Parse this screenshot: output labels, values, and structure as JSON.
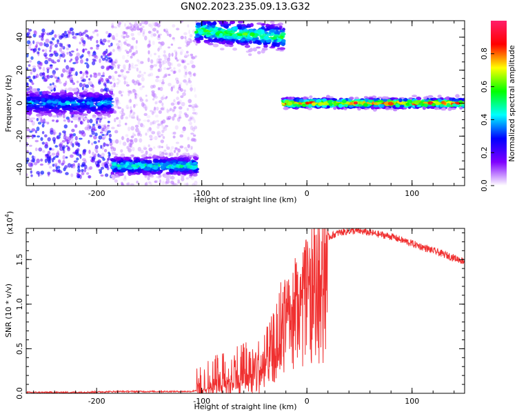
{
  "title": "GN02.2023.235.09.13.G32",
  "chart_data": [
    {
      "type": "heatmap",
      "xlabel": "Height of straight line (km)",
      "ylabel": "Frequency (Hz)",
      "xlim": [
        -267,
        150
      ],
      "ylim": [
        -50,
        50
      ],
      "xticks": [
        -200,
        -100,
        0,
        100
      ],
      "yticks": [
        -40,
        -20,
        0,
        20,
        40
      ],
      "colorbar": {
        "label": "Normalized spectral amplitude",
        "range": [
          0,
          1
        ],
        "ticks": [
          0.0,
          0.2,
          0.4,
          0.6,
          0.8
        ],
        "colors": [
          "#ffffff",
          "#7f00ff",
          "#0000ff",
          "#00ffff",
          "#00ff00",
          "#ffff00",
          "#ff0000",
          "#ff1f6a"
        ]
      },
      "regions": [
        {
          "x": [
            -267,
            -185
          ],
          "freq_center": 0,
          "freq_spread": 45,
          "intensity": 0.35,
          "kind": "scatter"
        },
        {
          "x": [
            -267,
            -185
          ],
          "freq_center": 0,
          "freq_spread": 4,
          "intensity": 0.45,
          "kind": "band"
        },
        {
          "x": [
            -185,
            -105
          ],
          "freq_center": 0,
          "freq_spread": 50,
          "intensity": 0.12,
          "kind": "scatter"
        },
        {
          "x": [
            -185,
            -105
          ],
          "freq_center": -38,
          "freq_spread": 3,
          "intensity": 0.55,
          "kind": "band"
        },
        {
          "x": [
            -105,
            -22
          ],
          "freq_center_start": 44,
          "freq_center_end": 40,
          "freq_spread": 4,
          "intensity": 0.65,
          "kind": "band"
        },
        {
          "x": [
            -22,
            150
          ],
          "freq_center": 0,
          "freq_spread": 1.5,
          "intensity": 0.95,
          "kind": "band"
        }
      ]
    },
    {
      "type": "line",
      "xlabel": "Height of straight line (km)",
      "ylabel": "SNR (10 * v/v)",
      "y_multiplier": "(x10",
      "y_exponent": "4",
      "xlim": [
        -267,
        150
      ],
      "ylim": [
        0,
        1.85
      ],
      "xticks": [
        -200,
        -100,
        0,
        100
      ],
      "yticks": [
        0.0,
        0.5,
        1.0,
        1.5
      ],
      "series": [
        {
          "color": "#f03030",
          "x": [
            -267,
            -220,
            -180,
            -150,
            -120,
            -110,
            -100,
            -90,
            -80,
            -70,
            -60,
            -50,
            -40,
            -30,
            -25,
            -20,
            -10,
            0,
            10,
            20,
            30,
            40,
            50,
            60,
            70,
            80,
            90,
            100,
            110,
            120,
            130,
            140,
            150
          ],
          "y": [
            0.01,
            0.01,
            0.02,
            0.02,
            0.02,
            0.02,
            0.05,
            0.12,
            0.18,
            0.22,
            0.3,
            0.25,
            0.35,
            0.55,
            0.8,
            1.0,
            1.2,
            1.4,
            1.6,
            1.75,
            1.8,
            1.82,
            1.82,
            1.8,
            1.78,
            1.76,
            1.72,
            1.68,
            1.64,
            1.6,
            1.56,
            1.52,
            1.48
          ]
        }
      ]
    }
  ]
}
